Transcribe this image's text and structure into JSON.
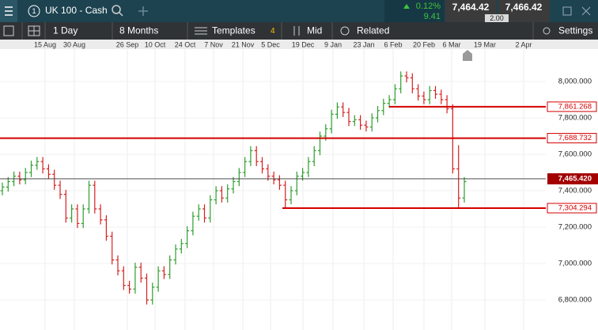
{
  "header": {
    "instrument": "UK 100 - Cash",
    "change_pct": "0.12%",
    "change": "9.41",
    "sell": "7,464.42",
    "buy": "7,466.42",
    "spread": "2.00"
  },
  "toolbar": {
    "interval": "1 Day",
    "range": "8 Months",
    "templates": "Templates",
    "templates_count": "4",
    "price": "Mid",
    "related": "Related",
    "settings": "Settings"
  },
  "chart_data": {
    "type": "ohlc",
    "x_labels": [
      "15 Aug",
      "30 Aug",
      "26 Sep",
      "10 Oct",
      "24 Oct",
      "7 Nov",
      "21 Nov",
      "5 Dec",
      "19 Dec",
      "9 Jan",
      "23 Jan",
      "6 Feb",
      "20 Feb",
      "6 Mar",
      "19 Mar",
      "2 Apr"
    ],
    "open": [
      7400,
      7420,
      7450,
      7480,
      7460,
      7500,
      7540,
      7560,
      7520,
      7490,
      7430,
      7380,
      7250,
      7300,
      7220,
      7300,
      7430,
      7300,
      7240,
      7150,
      7020,
      6960,
      6880,
      6860,
      6980,
      6920,
      6800,
      6870,
      6960,
      6940,
      7020,
      7080,
      7110,
      7180,
      7260,
      7300,
      7250,
      7350,
      7400,
      7360,
      7410,
      7450,
      7500,
      7560,
      7620,
      7560,
      7520,
      7480,
      7460,
      7430,
      7350,
      7400,
      7480,
      7500,
      7560,
      7620,
      7700,
      7740,
      7820,
      7860,
      7830,
      7780,
      7790,
      7760,
      7750,
      7800,
      7840,
      7880,
      7900,
      7960,
      8030,
      8020,
      7960,
      7920,
      7900,
      7950,
      7930,
      7900,
      7850,
      7520,
      7360
    ],
    "high": [
      7445,
      7475,
      7505,
      7505,
      7525,
      7565,
      7585,
      7585,
      7545,
      7515,
      7455,
      7405,
      7325,
      7325,
      7325,
      7455,
      7455,
      7325,
      7265,
      7175,
      7045,
      6985,
      6905,
      7005,
      7005,
      6945,
      6895,
      6985,
      6985,
      7045,
      7105,
      7135,
      7205,
      7285,
      7325,
      7325,
      7375,
      7425,
      7425,
      7435,
      7475,
      7525,
      7585,
      7645,
      7645,
      7585,
      7545,
      7505,
      7485,
      7455,
      7425,
      7505,
      7525,
      7585,
      7645,
      7725,
      7765,
      7845,
      7885,
      7885,
      7855,
      7815,
      7815,
      7785,
      7825,
      7865,
      7905,
      7925,
      7985,
      8055,
      8055,
      8045,
      7985,
      7945,
      7975,
      7975,
      7955,
      7925,
      7875,
      7650,
      7475
    ],
    "low": [
      7375,
      7395,
      7425,
      7435,
      7435,
      7475,
      7515,
      7495,
      7465,
      7405,
      7355,
      7225,
      7225,
      7195,
      7195,
      7275,
      7275,
      7215,
      7125,
      6995,
      6935,
      6855,
      6835,
      6835,
      6895,
      6775,
      6775,
      6845,
      6915,
      6915,
      6995,
      7055,
      7085,
      7155,
      7235,
      7225,
      7225,
      7325,
      7335,
      7335,
      7385,
      7425,
      7475,
      7535,
      7535,
      7495,
      7455,
      7435,
      7405,
      7305,
      7325,
      7375,
      7455,
      7475,
      7535,
      7595,
      7675,
      7715,
      7795,
      7805,
      7755,
      7755,
      7735,
      7725,
      7725,
      7775,
      7815,
      7855,
      7875,
      7935,
      7995,
      7935,
      7895,
      7875,
      7875,
      7905,
      7875,
      7825,
      7495,
      7305,
      7335
    ],
    "close": [
      7420,
      7450,
      7480,
      7460,
      7500,
      7540,
      7560,
      7520,
      7490,
      7430,
      7380,
      7250,
      7300,
      7220,
      7300,
      7430,
      7300,
      7240,
      7150,
      7020,
      6960,
      6880,
      6860,
      6980,
      6920,
      6800,
      6870,
      6960,
      6940,
      7020,
      7080,
      7110,
      7180,
      7260,
      7300,
      7250,
      7350,
      7400,
      7360,
      7410,
      7450,
      7500,
      7560,
      7620,
      7560,
      7520,
      7480,
      7460,
      7430,
      7350,
      7400,
      7480,
      7500,
      7560,
      7620,
      7700,
      7740,
      7820,
      7860,
      7830,
      7780,
      7790,
      7760,
      7750,
      7800,
      7840,
      7880,
      7900,
      7960,
      8030,
      8020,
      7960,
      7920,
      7900,
      7950,
      7930,
      7900,
      7850,
      7520,
      7360,
      7450
    ],
    "up_color": "#2e9e2e",
    "down_color": "#d62020",
    "ylim": [
      6635,
      8178
    ],
    "yticks": [
      {
        "value": 8000,
        "label": "8,000.000"
      },
      {
        "value": 7800,
        "label": "7,800.000"
      },
      {
        "value": 7600,
        "label": "7,600.000"
      },
      {
        "value": 7400,
        "label": "7,400.000"
      },
      {
        "value": 7200,
        "label": "7,200.000"
      },
      {
        "value": 7000,
        "label": "7,000.000"
      },
      {
        "value": 6800,
        "label": "6,800.000"
      }
    ],
    "levels": [
      {
        "value": 7861.268,
        "label": "7,861.268"
      },
      {
        "value": 7688.732,
        "label": "7,688.732"
      },
      {
        "value": 7304.294,
        "label": "7,304.294"
      }
    ],
    "level_color": "#d40000",
    "current": {
      "value": 7465.42,
      "label": "7,465.420"
    }
  }
}
